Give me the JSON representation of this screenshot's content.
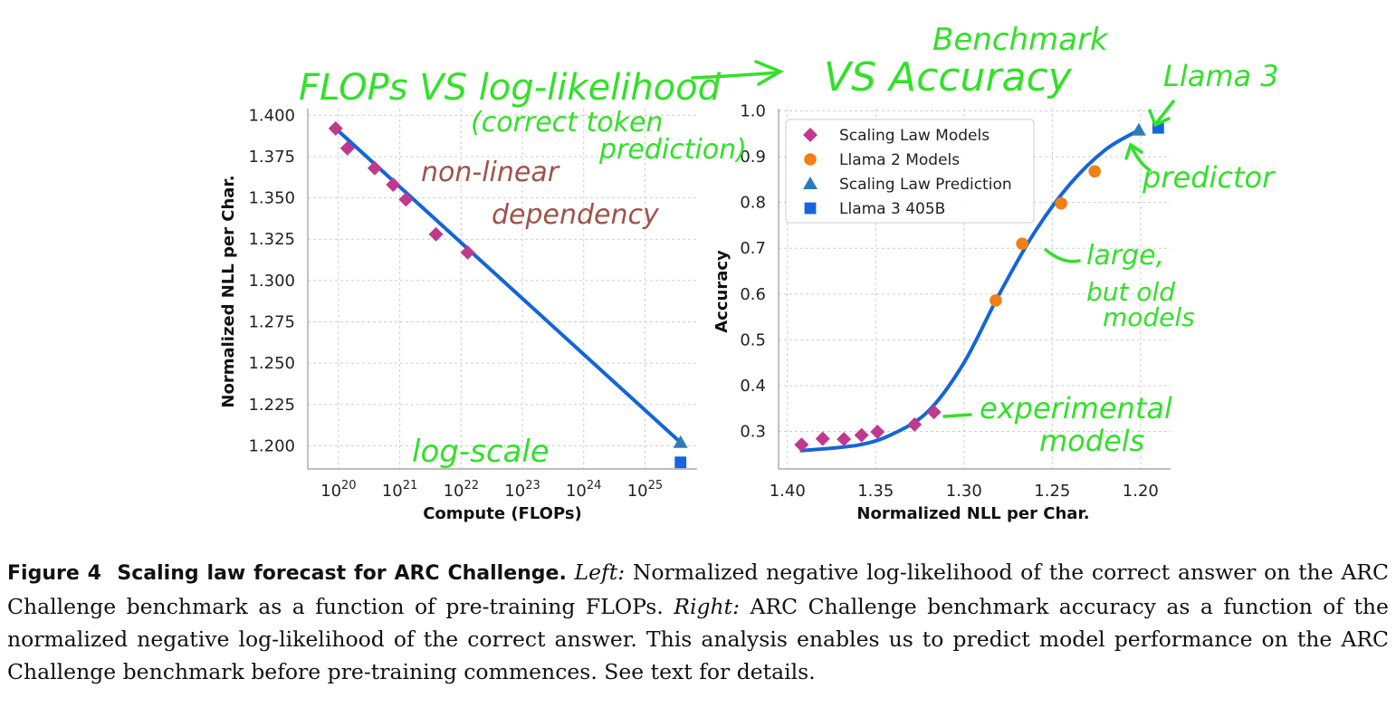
{
  "chart_data": [
    {
      "type": "scatter",
      "xlabel": "Compute (FLOPs)",
      "ylabel": "Normalized NLL per Char.",
      "xscale": "log",
      "x_tick_labels": [
        "10^20",
        "10^21",
        "10^22",
        "10^23",
        "10^24",
        "10^25"
      ],
      "x_tick_exponents": [
        20,
        21,
        22,
        23,
        24,
        25
      ],
      "y_tick_labels": [
        "1.400",
        "1.375",
        "1.350",
        "1.325",
        "1.300",
        "1.275",
        "1.250",
        "1.225",
        "1.200"
      ],
      "ylim": [
        1.186,
        1.404
      ],
      "xlim_log10": [
        19.5,
        25.85
      ],
      "grid": true,
      "series": [
        {
          "name": "Scaling Law Models",
          "marker": "diamond",
          "color": "#c0398f",
          "points": [
            [
              9e+19,
              1.392
            ],
            [
              1.4e+20,
              1.38
            ],
            [
              3.9e+20,
              1.368
            ],
            [
              7.8e+20,
              1.358
            ],
            [
              1.26e+21,
              1.349
            ],
            [
              3.9e+21,
              1.328
            ],
            [
              1.28e+22,
              1.317
            ]
          ]
        },
        {
          "name": "Scaling Law Prediction",
          "marker": "triangle",
          "color": "#2f7bb8",
          "points": [
            [
              3.8e+25,
              1.202
            ]
          ]
        },
        {
          "name": "Llama 3 405B",
          "marker": "square",
          "color": "#1565e0",
          "points": [
            [
              3.8e+25,
              1.19
            ]
          ]
        }
      ],
      "fit_line": {
        "color": "#1565d8",
        "from": [
          9e+19,
          1.392
        ],
        "to": [
          3.8e+25,
          1.202
        ]
      }
    },
    {
      "type": "scatter",
      "xlabel": "Normalized NLL per Char.",
      "ylabel": "Accuracy",
      "x_reversed": true,
      "x_ticks": [
        1.4,
        1.35,
        1.3,
        1.25,
        1.2
      ],
      "x_tick_labels": [
        "1.40",
        "1.35",
        "1.30",
        "1.25",
        "1.20"
      ],
      "y_ticks": [
        0.3,
        0.4,
        0.5,
        0.6,
        0.7,
        0.8,
        0.9,
        1.0
      ],
      "y_tick_labels": [
        "0.3",
        "0.4",
        "0.5",
        "0.6",
        "0.7",
        "0.8",
        "0.9",
        "1.0"
      ],
      "xlim": [
        1.405,
        1.183
      ],
      "ylim": [
        0.218,
        1.005
      ],
      "grid": true,
      "legend_position": "top-left",
      "series": [
        {
          "name": "Scaling Law Models",
          "marker": "diamond",
          "color": "#c0398f",
          "points": [
            [
              1.392,
              0.271
            ],
            [
              1.38,
              0.284
            ],
            [
              1.368,
              0.283
            ],
            [
              1.358,
              0.292
            ],
            [
              1.349,
              0.299
            ],
            [
              1.328,
              0.315
            ],
            [
              1.317,
              0.342
            ]
          ]
        },
        {
          "name": "Llama 2 Models",
          "marker": "circle",
          "color": "#f07f14",
          "points": [
            [
              1.282,
              0.586
            ],
            [
              1.267,
              0.71
            ],
            [
              1.245,
              0.798
            ],
            [
              1.226,
              0.868
            ]
          ]
        },
        {
          "name": "Scaling Law Prediction",
          "marker": "triangle",
          "color": "#2f7bb8",
          "points": [
            [
              1.201,
              0.958
            ]
          ]
        },
        {
          "name": "Llama 3 405B",
          "marker": "square",
          "color": "#1565e0",
          "points": [
            [
              1.19,
              0.963
            ]
          ]
        }
      ],
      "fit_curve": {
        "color": "#1565d8",
        "points": [
          [
            1.392,
            0.258
          ],
          [
            1.36,
            0.27
          ],
          [
            1.34,
            0.295
          ],
          [
            1.32,
            0.345
          ],
          [
            1.3,
            0.45
          ],
          [
            1.28,
            0.6
          ],
          [
            1.26,
            0.735
          ],
          [
            1.24,
            0.84
          ],
          [
            1.22,
            0.915
          ],
          [
            1.201,
            0.958
          ]
        ]
      }
    }
  ],
  "annotations": {
    "title_left": "FLOPs VS log-likelihood",
    "title_right_top": "Benchmark",
    "title_right": "VS Accuracy",
    "correct": "(correct token",
    "prediction_word": "prediction)",
    "nonlinear_1": "non-linear",
    "nonlinear_2": "dependency",
    "logscale": "log-scale",
    "llama3": "Llama 3",
    "predictor": "predictor",
    "large_1": "large,",
    "large_2": "but old",
    "large_3": "models",
    "exp_1": "experimental",
    "exp_2": "models",
    "green": "#33e02a",
    "brown": "#a0524a"
  },
  "caption": {
    "figure_label": "Figure 4",
    "figure_title": "Scaling law forecast for ARC Challenge.",
    "left_label": "Left:",
    "left_text": "Normalized negative log-likelihood of the correct answer on the ARC Challenge benchmark as a function of pre-training FLOPs.",
    "right_label": "Right:",
    "right_text": "ARC Challenge benchmark accuracy as a function of the normalized negative log-likelihood of the correct answer. This analysis enables us to predict model performance on the ARC Challenge benchmark before pre-training commences. See text for details."
  }
}
